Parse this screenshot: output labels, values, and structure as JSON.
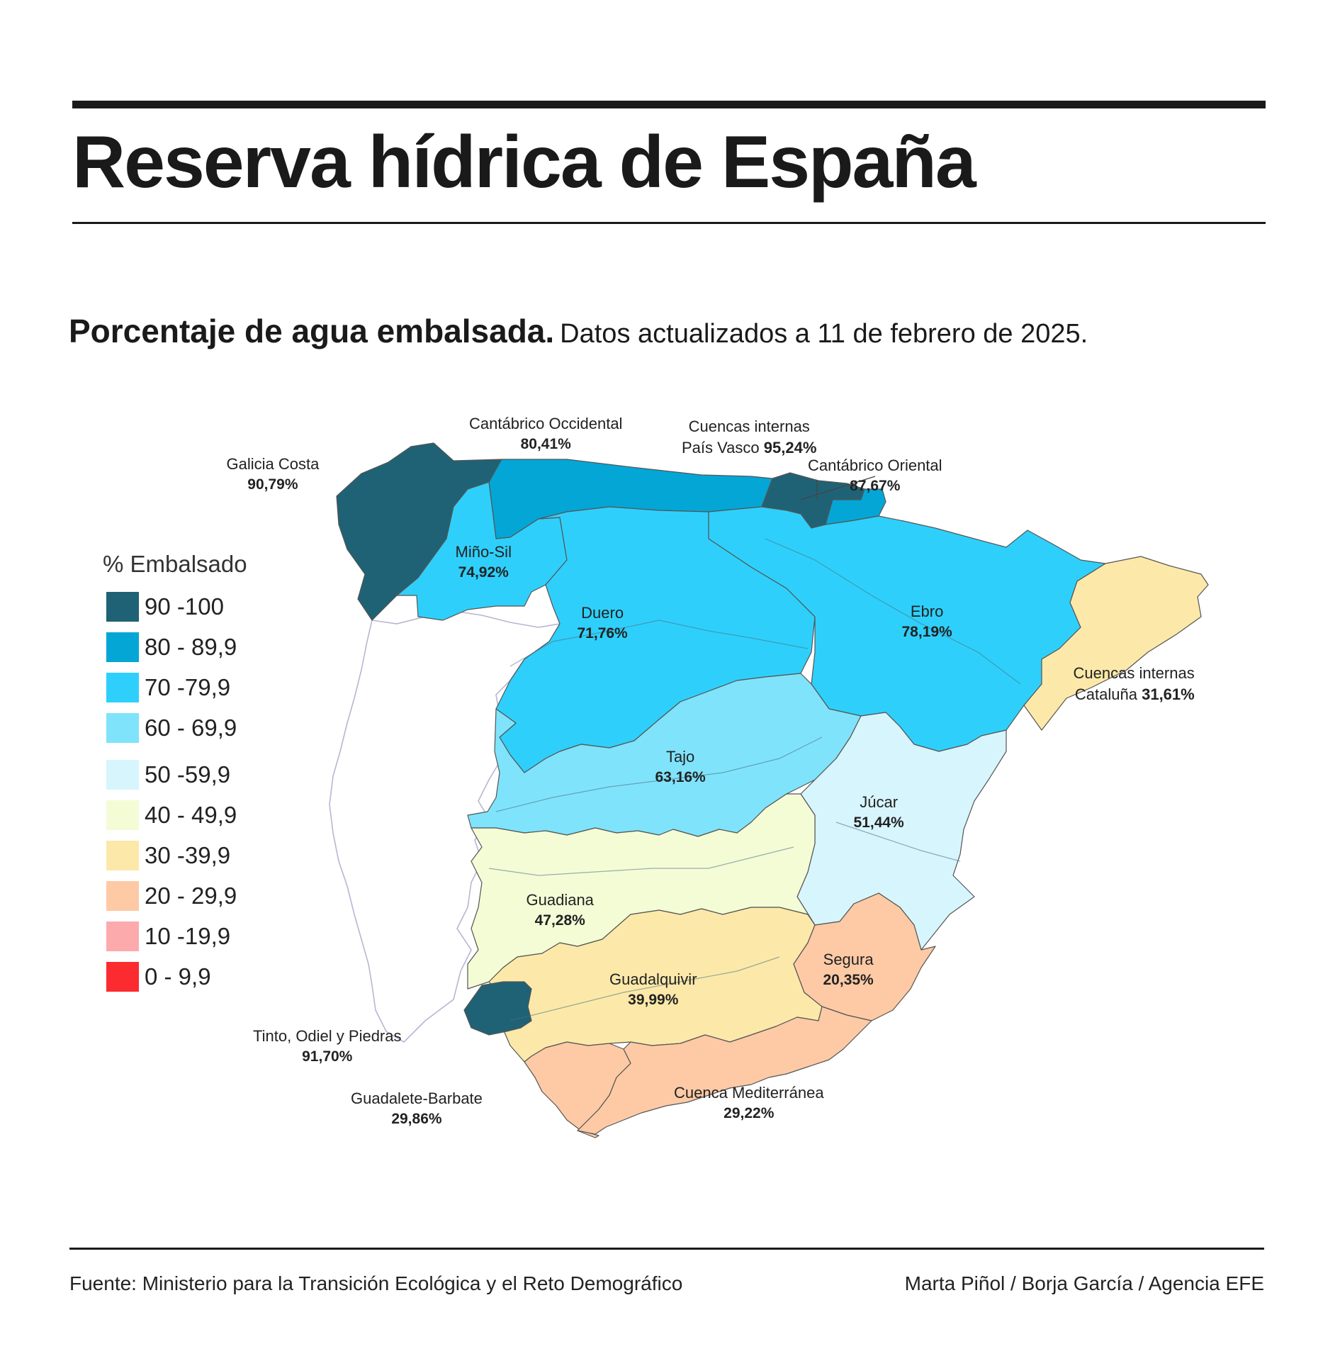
{
  "title": "Reserva hídrica de España",
  "subtitle": {
    "lead": "Porcentaje de agua embalsada.",
    "rest": "Datos actualizados a 11 de febrero de 2025."
  },
  "legend": {
    "title": "% Embalsado",
    "items": [
      {
        "label": "90 -100",
        "color": "#1f6275"
      },
      {
        "label": "80 - 89,9",
        "color": "#04a6d6"
      },
      {
        "label": "70 -79,9",
        "color": "#2ed0fb"
      },
      {
        "label": "60 - 69,9",
        "color": "#7fe3fb"
      },
      {
        "label": "50 -59,9",
        "color": "#d7f5fd"
      },
      {
        "label": "40 - 49,9",
        "color": "#f4fcd6"
      },
      {
        "label": "30 -39,9",
        "color": "#fce9a9"
      },
      {
        "label": "20 - 29,9",
        "color": "#fdcaa5"
      },
      {
        "label": "10 -19,9",
        "color": "#fdaaad"
      },
      {
        "label": "0 - 9,9",
        "color": "#fb2b2f"
      }
    ]
  },
  "basins": [
    {
      "name": "Galicia Costa",
      "value": "90,79%",
      "pct": 90.79
    },
    {
      "name": "Cantábrico Occidental",
      "value": "80,41%",
      "pct": 80.41
    },
    {
      "name": "Cuencas internas",
      "name2": "País Vasco",
      "value": "95,24%",
      "pct": 95.24
    },
    {
      "name": "Cantábrico Oriental",
      "value": "87,67%",
      "pct": 87.67
    },
    {
      "name": "Miño-Sil",
      "value": "74,92%",
      "pct": 74.92
    },
    {
      "name": "Duero",
      "value": "71,76%",
      "pct": 71.76
    },
    {
      "name": "Ebro",
      "value": "78,19%",
      "pct": 78.19
    },
    {
      "name": "Cuencas internas",
      "name2": "Cataluña",
      "value": "31,61%",
      "pct": 31.61
    },
    {
      "name": "Tajo",
      "value": "63,16%",
      "pct": 63.16
    },
    {
      "name": "Júcar",
      "value": "51,44%",
      "pct": 51.44
    },
    {
      "name": "Guadiana",
      "value": "47,28%",
      "pct": 47.28
    },
    {
      "name": "Guadalquivir",
      "value": "39,99%",
      "pct": 39.99
    },
    {
      "name": "Segura",
      "value": "20,35%",
      "pct": 20.35
    },
    {
      "name": "Tinto, Odiel y Piedras",
      "value": "91,70%",
      "pct": 91.7
    },
    {
      "name": "Guadalete-Barbate",
      "value": "29,86%",
      "pct": 29.86
    },
    {
      "name": "Cuenca Mediterránea",
      "value": "29,22%",
      "pct": 29.22
    }
  ],
  "footer": {
    "source": "Fuente: Ministerio para la Transición Ecológica y el Reto Demográfico",
    "credit": "Marta Piñol / Borja García / Agencia EFE"
  }
}
